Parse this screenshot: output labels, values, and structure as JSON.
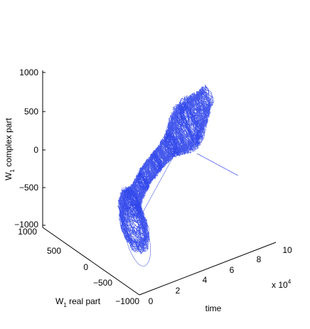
{
  "chart_data": {
    "type": "line",
    "projection": "3d",
    "xlabel_main": "time",
    "ylabel_main": "W",
    "ylabel_sub": "1",
    "ylabel_rest": " real part",
    "zlabel_main": "W",
    "zlabel_sub": "1",
    "zlabel_rest": " complex part",
    "xlim": [
      0,
      10
    ],
    "ylim": [
      -1000,
      1000
    ],
    "zlim": [
      -1000,
      1000
    ],
    "x_ticks": [
      "0",
      "2",
      "4",
      "6",
      "8",
      "10"
    ],
    "x_multiplier_base": "x 10",
    "x_multiplier_exp": "4",
    "y_ticks": [
      "1000",
      "500",
      "0",
      "−500",
      "−1000"
    ],
    "z_ticks": [
      "1000",
      "500",
      "0",
      "−500",
      "−1000"
    ],
    "grid": false,
    "series": [
      {
        "color": "#2f45ea",
        "description_points": [
          {
            "t": 0.0,
            "real": -820,
            "imag": -520
          },
          {
            "t": 0.8,
            "real": -700,
            "imag": -420
          },
          {
            "t": 2.0,
            "real": -250,
            "imag": -300
          },
          {
            "t": 4.0,
            "real": 0,
            "imag": -150
          },
          {
            "t": 6.0,
            "real": 150,
            "imag": -50
          },
          {
            "t": 8.0,
            "real": 250,
            "imag": 100
          },
          {
            "t": 10.0,
            "real": 300,
            "imag": 350
          }
        ]
      }
    ]
  }
}
